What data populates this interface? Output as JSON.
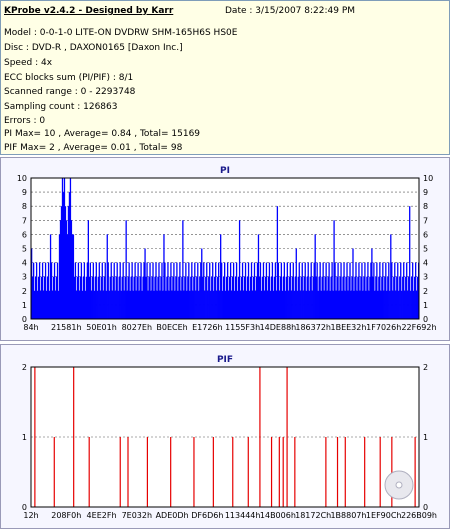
{
  "info": {
    "title": "KProbe v2.4.2 - Designed by Karr",
    "date": "Date : 3/15/2007 8:22:49 PM",
    "lines": [
      "Model : 0-0-1-0 LITE-ON DVDRW SHM-165H6S HS0E",
      "Disc : DVD-R , DAXON0165 [Daxon Inc.]",
      "Speed : 4x",
      "ECC blocks sum (PI/PIF) : 8/1",
      "Scanned range : 0 - 2293748",
      "Sampling count : 126863",
      "Errors : 0",
      "PI Max= 10 , Average= 0.84 , Total= 15169",
      "PIF Max= 2 , Average= 0.01 , Total= 98"
    ]
  },
  "colors": {
    "pi": "#0000ff",
    "pif": "#e60000",
    "grid": "#555555",
    "panel_bg": "#f6f6ff",
    "info_bg": "#ffffe6"
  },
  "chart_data": [
    {
      "type": "bar",
      "title": "PI",
      "ylim": [
        0,
        10
      ],
      "yticks": [
        "0",
        "1",
        "2",
        "3",
        "4",
        "5",
        "6",
        "7",
        "8",
        "9",
        "10"
      ],
      "xticks": [
        "84h",
        "21581h",
        "50E01h",
        "8027Eh",
        "B0ECEh",
        "E1726h",
        "1155F3h",
        "14DE88h",
        "186372h",
        "1BEE32h",
        "1F7026h",
        "22F692h"
      ],
      "grid": true,
      "typical_value": 2,
      "peak_region_values": [
        6,
        7,
        8,
        10,
        9,
        10,
        8,
        7,
        6,
        8,
        9,
        10,
        7,
        6
      ],
      "spikes": [
        5,
        6,
        8,
        7,
        6,
        7,
        5,
        6,
        7,
        5,
        6,
        7,
        6,
        8,
        5,
        6,
        7,
        5
      ]
    },
    {
      "type": "bar",
      "title": "PIF",
      "ylim": [
        0,
        2
      ],
      "yticks": [
        "0",
        "1",
        "2"
      ],
      "xticks": [
        "12h",
        "208F0h",
        "4EE2Fh",
        "7E032h",
        "ADE0Dh",
        "DF6D6h",
        "113444h",
        "14B006h",
        "18172Ch",
        "1B8807h",
        "1EF90Ch",
        "226B09h"
      ],
      "grid": true,
      "value_2_positions": [
        0.01,
        0.11,
        0.59,
        0.66
      ],
      "value_1_positions": [
        0.06,
        0.15,
        0.23,
        0.25,
        0.3,
        0.36,
        0.42,
        0.47,
        0.52,
        0.56,
        0.62,
        0.64,
        0.65,
        0.68,
        0.76,
        0.79,
        0.81,
        0.86,
        0.9,
        0.93,
        0.99
      ]
    }
  ]
}
